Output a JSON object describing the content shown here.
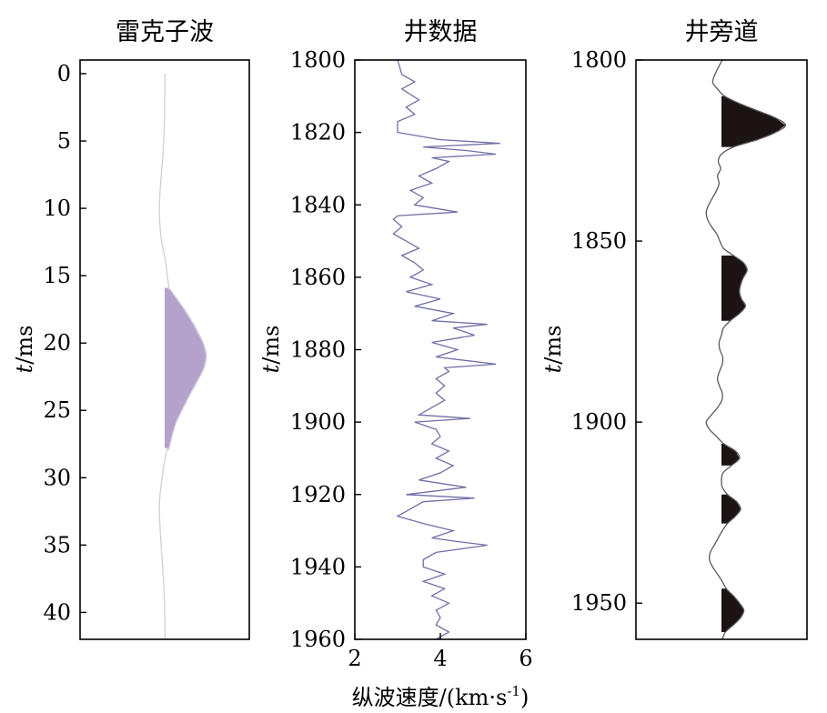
{
  "chart_data": [
    {
      "type": "line",
      "title": "雷克子波",
      "ylabel_italic": "t",
      "ylabel_unit": "/ms",
      "xlabel": "",
      "ylim": [
        0,
        42
      ],
      "y_inverted": true,
      "y_ticks": [
        0,
        5,
        10,
        15,
        20,
        25,
        30,
        35,
        40
      ],
      "fill_color": "#b4a2cc",
      "line_color": "#cfcfd8",
      "series": [
        {
          "fill": "positive",
          "t": [
            0,
            2,
            4,
            6,
            8,
            10,
            12,
            14,
            15.9,
            16,
            18,
            20,
            21,
            22,
            24,
            26,
            27.8,
            28,
            30,
            32,
            34,
            36,
            38,
            40,
            42
          ],
          "amplitude": [
            0.01,
            0,
            -0.01,
            -0.04,
            -0.09,
            -0.12,
            -0.09,
            0.02,
            0.1,
            0.12,
            0.55,
            0.88,
            0.95,
            0.88,
            0.55,
            0.25,
            0.1,
            0.05,
            -0.06,
            -0.12,
            -0.1,
            -0.06,
            -0.02,
            0,
            0.01
          ]
        }
      ]
    },
    {
      "type": "line",
      "title": "井数据",
      "ylabel_italic": "t",
      "ylabel_unit": "/ms",
      "xlabel": "纵波速度/(km·s",
      "xlabel_sup": "-1",
      "xlabel_end": ")",
      "ylim": [
        1800,
        1960
      ],
      "y_inverted": true,
      "y_ticks": [
        1800,
        1820,
        1840,
        1860,
        1880,
        1900,
        1920,
        1940,
        1960
      ],
      "xlim": [
        2,
        6
      ],
      "x_ticks": [
        2,
        4,
        6
      ],
      "line_color": "#6f6fa6",
      "series": [
        {
          "t": [
            1800,
            1804,
            1806,
            1808,
            1811,
            1813,
            1815,
            1817,
            1820,
            1822,
            1823,
            1824,
            1825,
            1826,
            1827,
            1828,
            1830,
            1832,
            1834,
            1836,
            1838,
            1840,
            1842,
            1843,
            1844,
            1846,
            1848,
            1850,
            1852,
            1854,
            1856,
            1858,
            1860,
            1862,
            1864,
            1866,
            1868,
            1870,
            1872,
            1873,
            1874,
            1876,
            1878,
            1880,
            1882,
            1884,
            1885,
            1886,
            1888,
            1890,
            1892,
            1894,
            1896,
            1898,
            1899,
            1900,
            1902,
            1904,
            1906,
            1908,
            1910,
            1912,
            1914,
            1916,
            1918,
            1920,
            1921,
            1922,
            1924,
            1926,
            1928,
            1930,
            1932,
            1933,
            1934,
            1936,
            1938,
            1940,
            1942,
            1944,
            1946,
            1948,
            1950,
            1952,
            1954,
            1956,
            1958,
            1960
          ],
          "v": [
            3.0,
            3.1,
            3.4,
            3.1,
            3.5,
            3.2,
            3.4,
            3.0,
            3.0,
            4.0,
            5.4,
            3.6,
            4.6,
            5.3,
            3.8,
            4.2,
            3.9,
            3.5,
            3.8,
            3.3,
            3.6,
            3.4,
            4.4,
            3.0,
            2.9,
            3.1,
            2.9,
            3.2,
            3.5,
            3.1,
            3.4,
            3.6,
            3.3,
            3.8,
            3.2,
            4.0,
            3.4,
            4.3,
            3.8,
            5.1,
            4.3,
            4.8,
            3.8,
            4.4,
            3.9,
            5.3,
            4.1,
            4.2,
            3.9,
            4.1,
            3.9,
            4.1,
            3.8,
            3.5,
            4.7,
            3.4,
            3.9,
            4.0,
            3.8,
            4.2,
            3.9,
            4.3,
            4.0,
            3.5,
            4.6,
            3.2,
            4.8,
            3.6,
            3.3,
            3.0,
            3.6,
            4.3,
            3.8,
            4.4,
            5.1,
            3.9,
            3.6,
            3.6,
            4.1,
            3.6,
            4.1,
            3.8,
            4.2,
            3.9,
            4.0,
            3.9,
            4.2,
            3.9
          ]
        }
      ]
    },
    {
      "type": "line",
      "title": "井旁道",
      "ylabel_italic": "t",
      "ylabel_unit": "/ms",
      "xlabel": "",
      "ylim": [
        1800,
        1960
      ],
      "y_inverted": true,
      "y_ticks": [
        1800,
        1850,
        1900,
        1950
      ],
      "fill_color": "#1c1414",
      "line_color": "#5a5a5a",
      "series": [
        {
          "fill": "positive",
          "t": [
            1800,
            1803,
            1806,
            1808,
            1810,
            1812,
            1814,
            1816,
            1818,
            1820,
            1822,
            1824,
            1826,
            1828,
            1830,
            1832,
            1834,
            1836,
            1838,
            1840,
            1842,
            1844,
            1846,
            1848,
            1850,
            1852,
            1854,
            1856,
            1858,
            1860,
            1862,
            1864,
            1866,
            1868,
            1870,
            1872,
            1874,
            1876,
            1878,
            1880,
            1882,
            1884,
            1886,
            1888,
            1890,
            1892,
            1894,
            1896,
            1898,
            1900,
            1902,
            1904,
            1906,
            1908,
            1910,
            1912,
            1914,
            1916,
            1918,
            1920,
            1922,
            1924,
            1926,
            1928,
            1930,
            1932,
            1934,
            1936,
            1938,
            1940,
            1942,
            1944,
            1946,
            1948,
            1950,
            1952,
            1954,
            1956,
            1958,
            1960
          ],
          "amplitude": [
            0.02,
            -0.12,
            -0.22,
            -0.1,
            0.08,
            0.45,
            0.9,
            1.35,
            1.6,
            1.35,
            0.9,
            0.3,
            0.0,
            -0.08,
            -0.02,
            -0.1,
            -0.06,
            -0.12,
            -0.22,
            -0.32,
            -0.38,
            -0.35,
            -0.25,
            -0.12,
            -0.04,
            0.05,
            0.3,
            0.55,
            0.64,
            0.55,
            0.48,
            0.45,
            0.5,
            0.6,
            0.45,
            0.22,
            0.05,
            0.0,
            -0.06,
            -0.04,
            0.03,
            0.02,
            -0.05,
            -0.1,
            -0.05,
            0.02,
            0.01,
            -0.1,
            -0.25,
            -0.38,
            -0.3,
            -0.12,
            0.06,
            0.35,
            0.45,
            0.25,
            0.04,
            0.0,
            0.02,
            0.15,
            0.38,
            0.48,
            0.35,
            0.15,
            0.02,
            -0.08,
            -0.18,
            -0.28,
            -0.3,
            -0.22,
            -0.1,
            0.02,
            0.12,
            0.3,
            0.45,
            0.56,
            0.48,
            0.3,
            0.1,
            0.02
          ]
        }
      ]
    }
  ]
}
